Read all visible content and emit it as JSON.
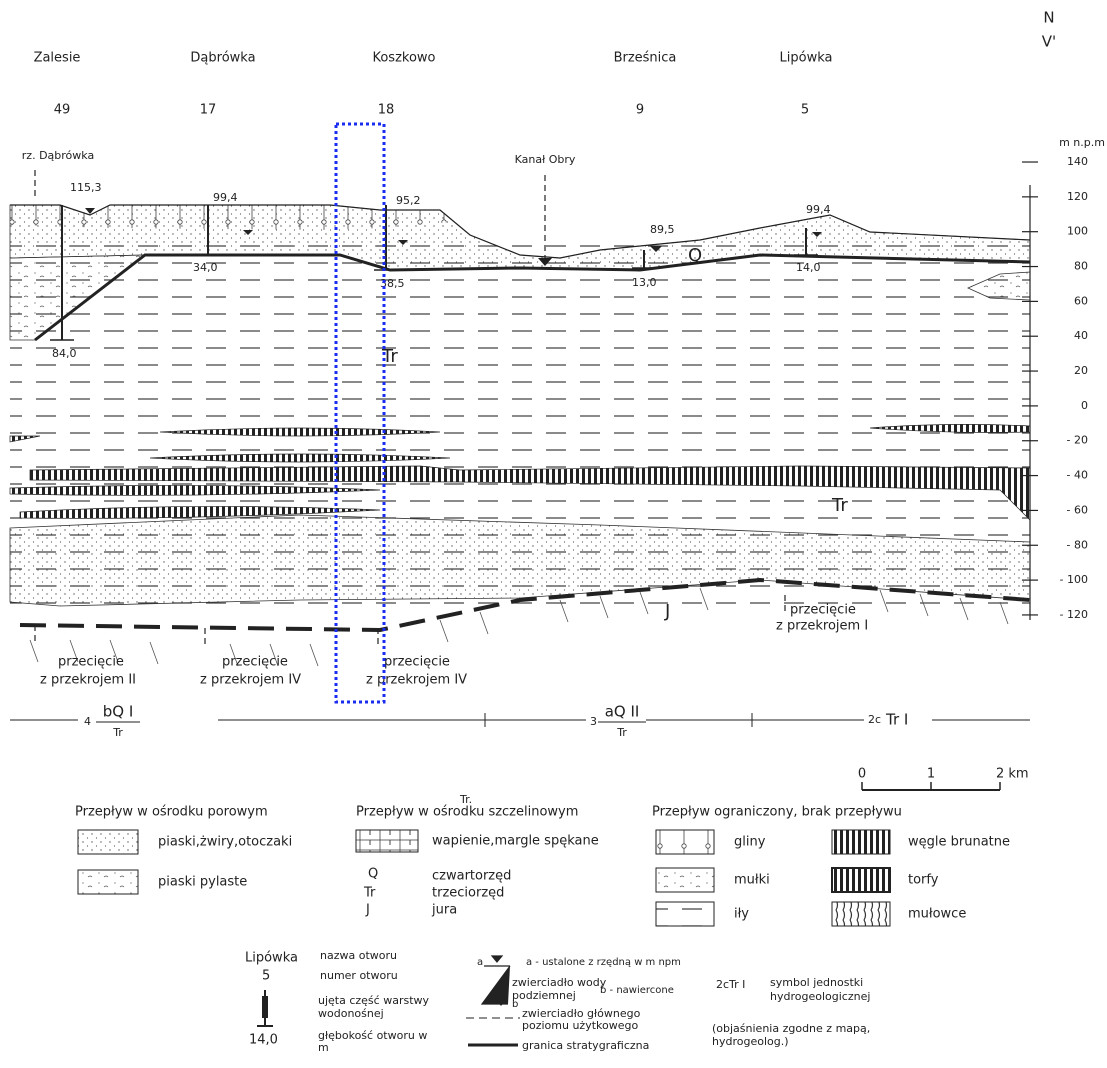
{
  "header": {
    "north": "N",
    "section_end": "V'"
  },
  "wells": [
    {
      "name": "Zalesie",
      "number": "49"
    },
    {
      "name": "Dąbrówka",
      "number": "17"
    },
    {
      "name": "Koszkowo",
      "number": "18"
    },
    {
      "name": "Brześnica",
      "number": "9"
    },
    {
      "name": "Lipówka",
      "number": "5"
    }
  ],
  "profile": {
    "unit": "m n.p.m",
    "yticks": [
      140,
      120,
      100,
      80,
      60,
      40,
      20,
      0,
      {
        "value": -20,
        "label": "- 20"
      },
      {
        "value": -40,
        "label": "- 40"
      },
      {
        "value": -60,
        "label": "- 60"
      },
      {
        "value": -80,
        "label": "- 80"
      },
      {
        "value": -100,
        "label": "- 100"
      },
      {
        "value": -120,
        "label": "- 120"
      }
    ],
    "river": "rz. Dąbrówka",
    "canal": "Kanał Obry",
    "elevations": [
      "115,3",
      "99,4",
      "95,2",
      "89,5",
      "99,4"
    ],
    "depths": [
      "84,0",
      "34,0",
      "38,5",
      "13,0",
      "14,0"
    ],
    "formations": [
      "Q",
      "Tr",
      "Tr",
      "J"
    ],
    "intersections": [
      {
        "line1": "przecięcie",
        "line2": "z przekrojem II"
      },
      {
        "line1": "przecięcie",
        "line2": "z przekrojem IV"
      },
      {
        "line1": "przecięcie",
        "line2": "z przekrojem IV"
      },
      {
        "line1": "przecięcie",
        "line2": "z przekrojem I"
      }
    ],
    "units": [
      {
        "prefix": "4",
        "numerator": "bQ I",
        "denominator": "Tr"
      },
      {
        "prefix": "3",
        "numerator": "aQ II",
        "denominator": "Tr"
      },
      {
        "prefix": "2c",
        "numerator": "Tr I"
      }
    ]
  },
  "scale": {
    "ticks": [
      0,
      1,
      {
        "value": 2,
        "label": "2 km"
      }
    ]
  },
  "legend": {
    "stray": "Tr.",
    "porous": {
      "title": "Przepływ w ośrodku porowym",
      "items": [
        "piaski,żwiry,otoczaki",
        "piaski pylaste"
      ]
    },
    "fractured": {
      "title": "Przepływ w ośrodku szczelinowym",
      "items": [
        "wapienie,margle spękane"
      ],
      "symbols": [
        {
          "code": "Q",
          "label": "czwartorzęd"
        },
        {
          "code": "Tr",
          "label": "trzeciorzęd"
        },
        {
          "code": "J",
          "label": "jura"
        }
      ]
    },
    "limited": {
      "title": "Przepływ ograniczony, brak przepływu",
      "items": [
        "gliny",
        "mułki",
        "iły",
        "węgle brunatne",
        "torfy",
        "mułowce"
      ]
    },
    "well": {
      "name": "Lipówka",
      "name_label": "nazwa otworu",
      "number": "5",
      "number_label": "numer otworu",
      "screen_label": "ujęta część warstwy wodonośnej",
      "depth": "14,0",
      "depth_label": "głębokość otworu w m"
    },
    "water": {
      "a": "a",
      "a_label": "a - ustalone z rzędną w m npm",
      "label": "zwierciadło wody podziemnej",
      "b": "b",
      "b_label": "b - nawiercone",
      "main": "zwierciadło głównego poziomu użytkowego",
      "boundary": "granica stratygraficzna"
    },
    "unit_symbol": {
      "code": "2cTr I",
      "label": "symbol jednostki hydrogeologicznej",
      "note": "(objaśnienia zgodne z mapą, hydrogeolog.)"
    }
  }
}
